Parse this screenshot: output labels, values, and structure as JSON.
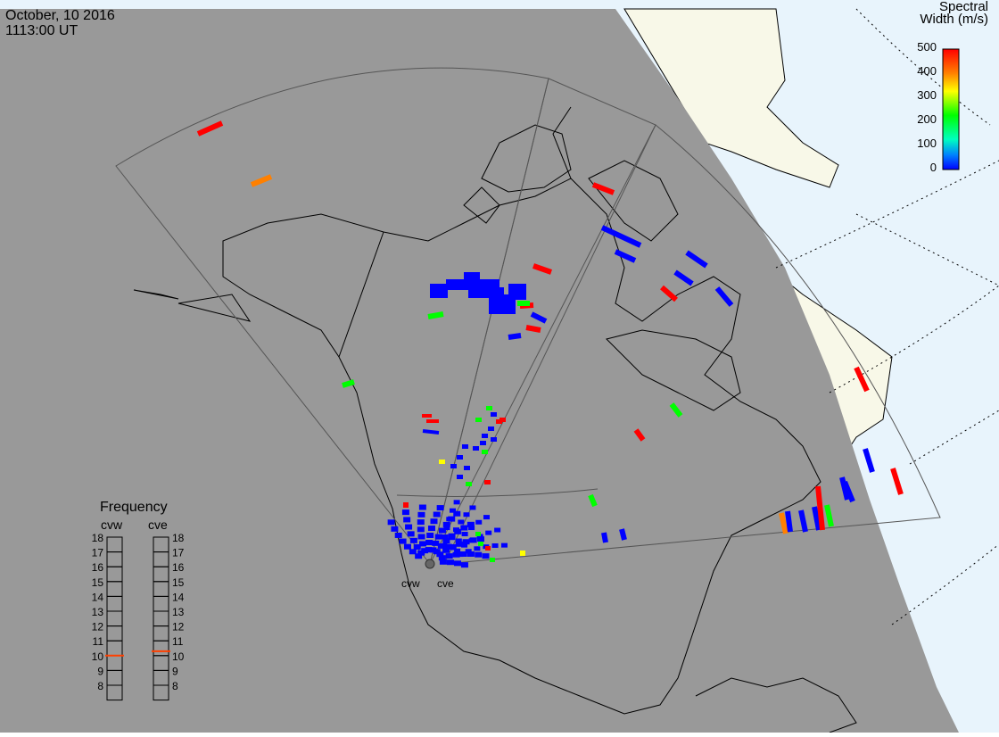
{
  "header": {
    "date": "October, 10 2016",
    "time": "1113:00 UT"
  },
  "colorbar": {
    "title_line1": "Spectral",
    "title_line2": "Width (m/s)",
    "ticks": [
      "500",
      "400",
      "300",
      "200",
      "100",
      "0"
    ],
    "colors": [
      "#ff0000",
      "#ff8000",
      "#ffff00",
      "#00ff00",
      "#00ffc0",
      "#0080ff",
      "#0000ff"
    ]
  },
  "frequency_panel": {
    "title": "Frequency",
    "radars": [
      "cvw",
      "cve"
    ],
    "ticks": [
      "18",
      "17",
      "16",
      "15",
      "14",
      "13",
      "12",
      "11",
      "10",
      "9",
      "8"
    ],
    "values": {
      "cvw": 10.5,
      "cve": 10.8
    },
    "indicator_color": "#ff4000"
  },
  "radar_sites": [
    "cvw",
    "cve"
  ],
  "map_colors": {
    "night": "#999999",
    "day_ocean": "#e8f4fc",
    "day_land": "#f8f8e8"
  }
}
